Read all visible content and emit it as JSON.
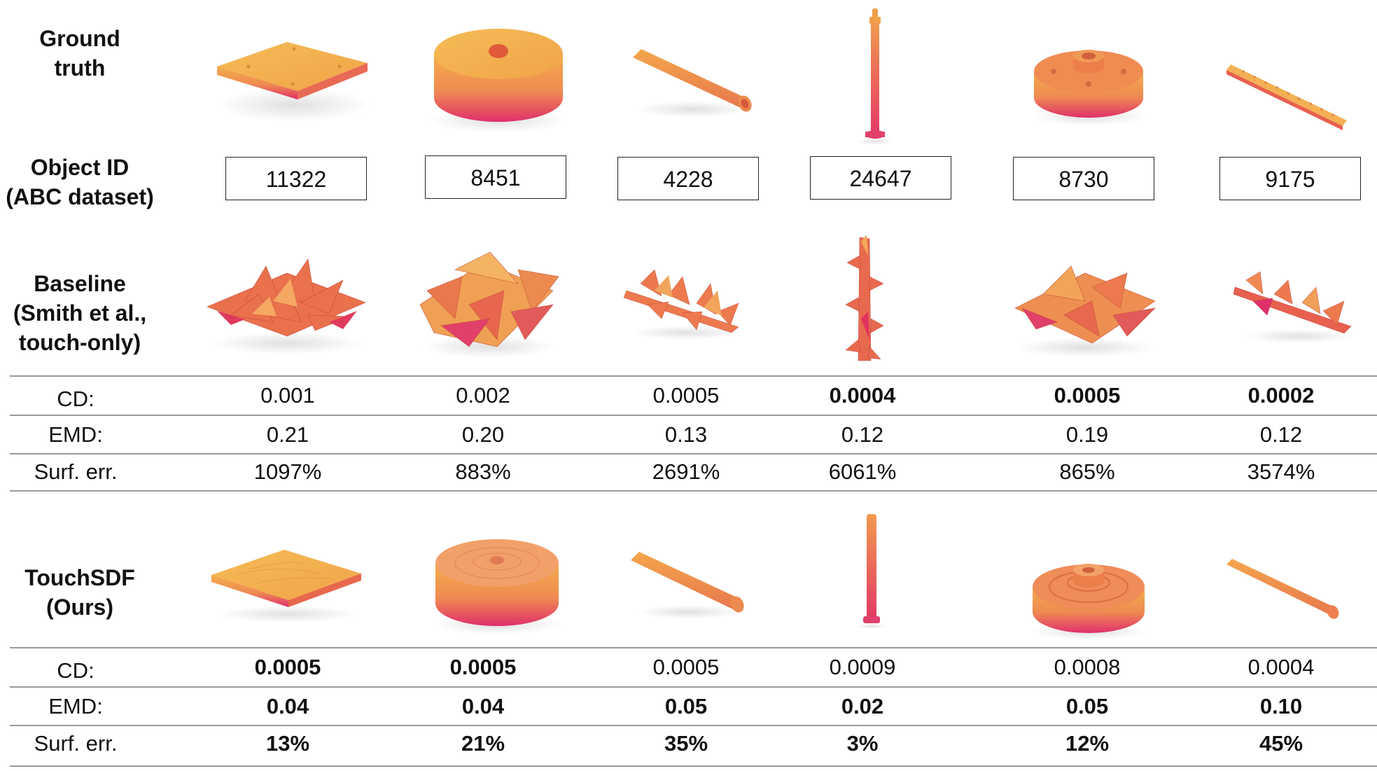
{
  "row_labels": {
    "ground_truth": [
      "Ground",
      "truth"
    ],
    "object_id": [
      "Object ID",
      "(ABC dataset)"
    ],
    "baseline": [
      "Baseline",
      "(Smith et al.,",
      "touch-only)"
    ],
    "touchsdf": [
      "TouchSDF",
      "(Ours)"
    ]
  },
  "object_ids": [
    "11322",
    "8451",
    "4228",
    "24647",
    "8730",
    "9175"
  ],
  "metric_labels": [
    "CD:",
    "EMD:",
    "Surf. err."
  ],
  "baseline_metrics": {
    "cd": [
      {
        "v": "0.001",
        "b": false
      },
      {
        "v": "0.002",
        "b": false
      },
      {
        "v": "0.0005",
        "b": false
      },
      {
        "v": "0.0004",
        "b": true
      },
      {
        "v": "0.0005",
        "b": true
      },
      {
        "v": "0.0002",
        "b": true
      }
    ],
    "emd": [
      {
        "v": "0.21",
        "b": false
      },
      {
        "v": "0.20",
        "b": false
      },
      {
        "v": "0.13",
        "b": false
      },
      {
        "v": "0.12",
        "b": false
      },
      {
        "v": "0.19",
        "b": false
      },
      {
        "v": "0.12",
        "b": false
      }
    ],
    "surf": [
      {
        "v": "1097%",
        "b": false
      },
      {
        "v": "883%",
        "b": false
      },
      {
        "v": "2691%",
        "b": false
      },
      {
        "v": "6061%",
        "b": false
      },
      {
        "v": "865%",
        "b": false
      },
      {
        "v": "3574%",
        "b": false
      }
    ]
  },
  "touchsdf_metrics": {
    "cd": [
      {
        "v": "0.0005",
        "b": true
      },
      {
        "v": "0.0005",
        "b": true
      },
      {
        "v": "0.0005",
        "b": false
      },
      {
        "v": "0.0009",
        "b": false
      },
      {
        "v": "0.0008",
        "b": false
      },
      {
        "v": "0.0004",
        "b": false
      }
    ],
    "emd": [
      {
        "v": "0.04",
        "b": true
      },
      {
        "v": "0.04",
        "b": true
      },
      {
        "v": "0.05",
        "b": true
      },
      {
        "v": "0.02",
        "b": true
      },
      {
        "v": "0.05",
        "b": true
      },
      {
        "v": "0.10",
        "b": true
      }
    ],
    "surf": [
      {
        "v": "13%",
        "b": true
      },
      {
        "v": "21%",
        "b": true
      },
      {
        "v": "35%",
        "b": true
      },
      {
        "v": "3%",
        "b": true
      },
      {
        "v": "12%",
        "b": true
      },
      {
        "v": "45%",
        "b": true
      }
    ]
  },
  "colors": {
    "top": "#f4b24a",
    "mid": "#f08a4a",
    "bottom": "#e0306a",
    "spike": "#e8694a"
  },
  "shapes": [
    "flat-plate",
    "cylinder-disc",
    "tube",
    "pin",
    "flanged-disc",
    "perforated-bar"
  ]
}
